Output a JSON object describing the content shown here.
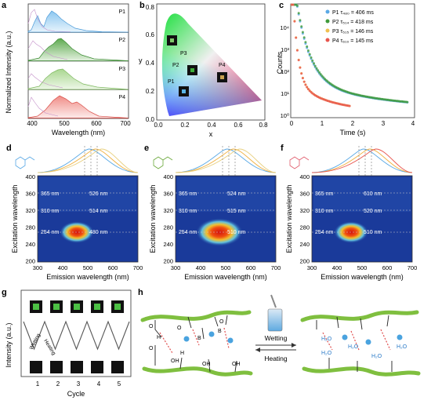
{
  "panels": {
    "a": {
      "letter": "a",
      "ylabel": "Normalized Intensity (a.u.)",
      "xlabel": "Wavelength (nm)",
      "xticks": [
        "400",
        "500",
        "600",
        "700"
      ],
      "rows": [
        "P1",
        "P2",
        "P3",
        "P4"
      ]
    },
    "b": {
      "letter": "b",
      "xlabel": "x",
      "ylabel": "y",
      "xticks": [
        "0.0",
        "0.2",
        "0.4",
        "0.6",
        "0.8"
      ],
      "yticks": [
        "0.0",
        "0.2",
        "0.4",
        "0.6",
        "0.8"
      ],
      "points": [
        "P1",
        "P2",
        "P3",
        "P4"
      ]
    },
    "c": {
      "letter": "c",
      "xlabel": "Time (s)",
      "ylabel": "Counts",
      "xticks": [
        "0",
        "1",
        "2",
        "3",
        "4"
      ],
      "yticks": [
        "10⁰",
        "10¹",
        "10²",
        "10³",
        "10⁴"
      ],
      "legend": [
        "P1 τ₄₈₀ = 406 ms",
        "P2 τ₅₁₄ = 418 ms",
        "P3 τ₅₁₅ = 146 ms",
        "P4 τ₆₁₀ = 145 ms"
      ]
    },
    "d": {
      "letter": "d",
      "labels": [
        "365 nm",
        "526 nm",
        "310 nm",
        "514 nm",
        "254 nm",
        "480 nm"
      ]
    },
    "e": {
      "letter": "e",
      "labels": [
        "365 nm",
        "524 nm",
        "310 nm",
        "515 nm",
        "254 nm",
        "510 nm"
      ]
    },
    "f": {
      "letter": "f",
      "labels": [
        "365 nm",
        "610 nm",
        "310 nm",
        "520 nm",
        "254 nm",
        "510 nm"
      ]
    },
    "heat_common": {
      "ylabel": "Excitation wavelength",
      "xlabel": "Emission wavelength  (nm)",
      "yticks": [
        "400",
        "360",
        "320",
        "280",
        "240",
        "200"
      ],
      "xticks": [
        "300",
        "400",
        "500",
        "600",
        "700"
      ]
    },
    "g": {
      "letter": "g",
      "ylabel": "Intensity (a.u.)",
      "xlabel": "Cycle",
      "xticks": [
        "1",
        "2",
        "3",
        "4",
        "5"
      ],
      "wetting": "Wetting",
      "heating": "Heating"
    },
    "h": {
      "letter": "h",
      "wetting": "Wetting",
      "heating": "Heating",
      "chem": [
        "O",
        "H",
        "O",
        "B",
        "O",
        "B",
        "O",
        "H",
        "OH",
        "OH",
        "OH",
        "H₂O",
        "H₂O",
        "H₂O",
        "H₂O",
        "H₂O"
      ]
    }
  },
  "colors": {
    "p1": "#5aa9e6",
    "p2": "#3f9a3a",
    "p3": "#8fc76a",
    "p4": "#e8554e",
    "heat_bg": "#1a3a9a",
    "heat_hot": "#e03010"
  },
  "chart_data": [
    {
      "type": "line",
      "panel": "a",
      "xlim": [
        380,
        700
      ],
      "series": [
        {
          "name": "P1",
          "peak": 480
        },
        {
          "name": "P2",
          "peak": 514
        },
        {
          "name": "P3",
          "peak": 515
        },
        {
          "name": "P4",
          "peak": 530
        }
      ]
    },
    {
      "type": "scatter",
      "panel": "b",
      "xlim": [
        0,
        0.8
      ],
      "ylim": [
        0,
        0.8
      ],
      "series": [
        {
          "name": "P1",
          "x": [
            0.17
          ],
          "y": [
            0.16
          ]
        },
        {
          "name": "P2",
          "x": [
            0.26
          ],
          "y": [
            0.37
          ]
        },
        {
          "name": "P3",
          "x": [
            0.13
          ],
          "y": [
            0.6
          ]
        },
        {
          "name": "P4",
          "x": [
            0.53
          ],
          "y": [
            0.3
          ]
        }
      ]
    },
    {
      "type": "scatter",
      "panel": "c",
      "xlim": [
        0,
        4
      ],
      "ylim": [
        1,
        10000
      ],
      "log_y": true,
      "series": [
        {
          "name": "P1 τ480 = 406 ms",
          "tau": 0.406
        },
        {
          "name": "P2 τ514 = 418 ms",
          "tau": 0.418
        },
        {
          "name": "P3 τ515 = 146 ms",
          "tau": 0.146
        },
        {
          "name": "P4 τ610 = 145 ms",
          "tau": 0.145
        }
      ]
    },
    {
      "type": "line",
      "panel": "g",
      "xlim": [
        0.5,
        5.5
      ],
      "x": [
        0.5,
        1,
        1.5,
        2,
        2.5,
        3,
        3.5,
        4,
        4.5,
        5,
        5.5
      ],
      "series": [
        {
          "name": "Intensity",
          "values": [
            0.9,
            0.2,
            0.9,
            0.2,
            0.9,
            0.2,
            0.9,
            0.2,
            0.9,
            0.2,
            0.9
          ]
        }
      ]
    }
  ]
}
